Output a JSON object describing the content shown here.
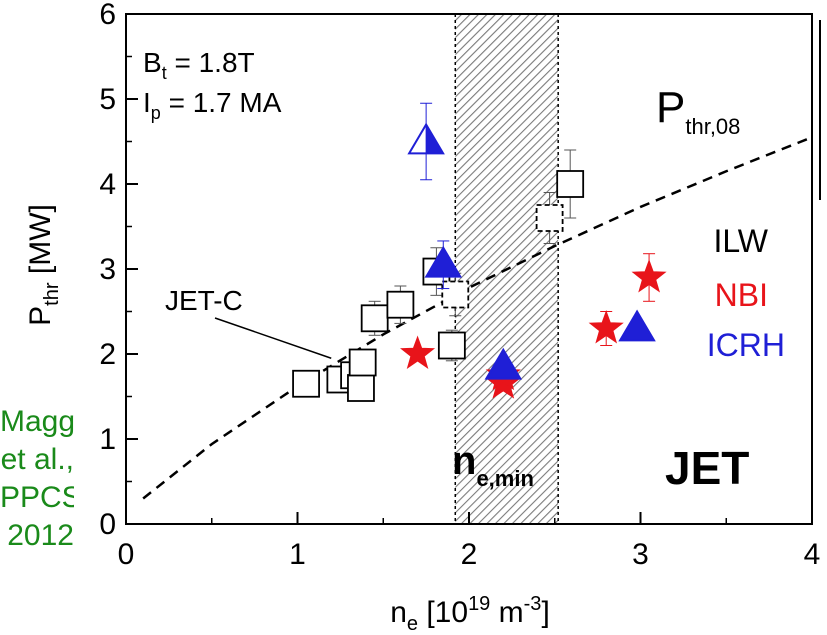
{
  "citation": {
    "lines": [
      "Maggi",
      "et al.,",
      "PPCS",
      "2012"
    ]
  },
  "chart_data": {
    "type": "scatter",
    "xlim": [
      0,
      4
    ],
    "ylim": [
      0,
      6
    ],
    "xticks": [
      "0",
      "1",
      "2",
      "3",
      "4"
    ],
    "yticks": [
      "0",
      "1",
      "2",
      "3",
      "4",
      "5",
      "6"
    ],
    "xlabel": {
      "base": "n",
      "sub": "e",
      "rest": " [10",
      "sup1": "19",
      "rest2": " m",
      "sup2": "-3",
      "rest3": "]"
    },
    "ylabel": {
      "base": "P",
      "sub": "thr",
      "rest": " [MW]"
    },
    "grid": false,
    "annotations": {
      "bt": {
        "base": "B",
        "sub": "t",
        "rest": " = 1.8T"
      },
      "ip": {
        "base": "I",
        "sub": "p",
        "rest": " = 1.7 MA"
      },
      "pthr": {
        "base": "P",
        "sub": "thr,08"
      },
      "jetc": "JET-C",
      "nemin": {
        "base": "n",
        "sub": "e,min"
      },
      "jet": "JET"
    },
    "legend": {
      "placement": "right",
      "title": "ILW",
      "entries": [
        {
          "label": "NBI",
          "color": "#e8141a"
        },
        {
          "label": "ICRH",
          "color": "#1f1fd6"
        }
      ]
    },
    "shaded_band": {
      "x_from": 1.92,
      "x_to": 2.52
    },
    "scaling_curve": {
      "style": "dashed",
      "points": [
        [
          0.1,
          0.3
        ],
        [
          0.5,
          0.94
        ],
        [
          1.0,
          1.62
        ],
        [
          1.5,
          2.23
        ],
        [
          2.0,
          2.78
        ],
        [
          2.5,
          3.27
        ],
        [
          3.0,
          3.73
        ],
        [
          3.5,
          4.15
        ],
        [
          4.0,
          4.55
        ]
      ]
    },
    "jetc_pointer": {
      "from": [
        1.02,
        2.2
      ],
      "to": [
        1.15,
        1.95
      ]
    },
    "series": [
      {
        "name": "JET-C",
        "marker": "square",
        "color": "#000000",
        "points": [
          {
            "x": 1.05,
            "y": 1.65
          },
          {
            "x": 1.25,
            "y": 1.7
          },
          {
            "x": 1.33,
            "y": 1.75
          },
          {
            "x": 1.37,
            "y": 1.6
          },
          {
            "x": 1.38,
            "y": 1.9
          },
          {
            "x": 1.45,
            "y": 2.42,
            "err": 0.2
          },
          {
            "x": 1.6,
            "y": 2.58,
            "err": 0.22
          },
          {
            "x": 1.81,
            "y": 2.97,
            "err": 0.28
          },
          {
            "x": 1.9,
            "y": 2.1,
            "err": 0.18
          },
          {
            "x": 2.59,
            "y": 4.0,
            "err": 0.4
          }
        ]
      },
      {
        "name": "JET-C (dashed)",
        "marker": "square-dashed",
        "color": "#000000",
        "points": [
          {
            "x": 1.92,
            "y": 2.7,
            "err": 0.25
          },
          {
            "x": 2.47,
            "y": 3.6,
            "err": 0.3
          }
        ]
      },
      {
        "name": "NBI",
        "marker": "star",
        "color": "#e8141a",
        "points": [
          {
            "x": 1.7,
            "y": 2.0
          },
          {
            "x": 2.2,
            "y": 1.65
          },
          {
            "x": 2.2,
            "y": 1.75
          },
          {
            "x": 2.8,
            "y": 2.3,
            "err": 0.2
          },
          {
            "x": 3.05,
            "y": 2.9,
            "err": 0.28
          }
        ]
      },
      {
        "name": "ICRH",
        "marker": "triangle-half",
        "color": "#1f1fd6",
        "points": [
          {
            "x": 1.75,
            "y": 4.5,
            "err": 0.45
          },
          {
            "x": 1.85,
            "y": 3.05,
            "err": 0.28
          },
          {
            "x": 2.2,
            "y": 1.85
          },
          {
            "x": 2.98,
            "y": 2.3
          }
        ]
      }
    ]
  }
}
